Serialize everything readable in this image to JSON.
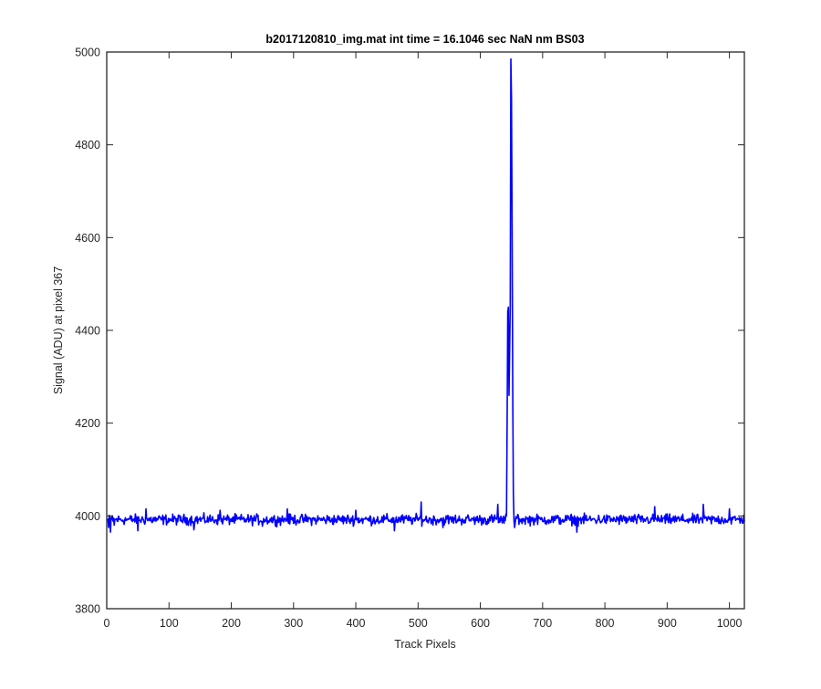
{
  "chart_data": {
    "type": "line",
    "title": "b2017120810_img.mat int time = 16.1046 sec  NaN nm BS03",
    "xlabel": "Track Pixels",
    "ylabel": "Signal (ADU) at pixel 367",
    "xlim": [
      0,
      1024
    ],
    "ylim": [
      3800,
      5000
    ],
    "xticks": [
      0,
      100,
      200,
      300,
      400,
      500,
      600,
      700,
      800,
      900,
      1000
    ],
    "yticks": [
      3800,
      4000,
      4200,
      4400,
      4600,
      4800,
      5000
    ],
    "grid": false,
    "line_color": "#0000ff",
    "baseline": {
      "x_range": [
        1,
        1024
      ],
      "mean": 3992,
      "noise_amplitude": 10
    },
    "series": [
      {
        "x": [
          1,
          3,
          6,
          9,
          12,
          15,
          50,
          63,
          140,
          182,
          250,
          290,
          400,
          462,
          505,
          508,
          540,
          600,
          628,
          635,
          640,
          642,
          643,
          644,
          645,
          646,
          647,
          648,
          649,
          650,
          651,
          652,
          653,
          654,
          655,
          657,
          660,
          700,
          755,
          880,
          958,
          1000,
          1024
        ],
        "y": [
          3990,
          3975,
          3965,
          4000,
          3980,
          3992,
          3968,
          4015,
          3970,
          4012,
          3978,
          4015,
          4012,
          3968,
          4030,
          3992,
          3975,
          3990,
          4025,
          3985,
          3990,
          4000,
          4200,
          4440,
          4450,
          4260,
          4350,
          4455,
          4985,
          4900,
          4620,
          4270,
          4050,
          3990,
          3975,
          3998,
          4003,
          3988,
          3965,
          4020,
          4025,
          4015,
          3988
        ]
      }
    ]
  }
}
